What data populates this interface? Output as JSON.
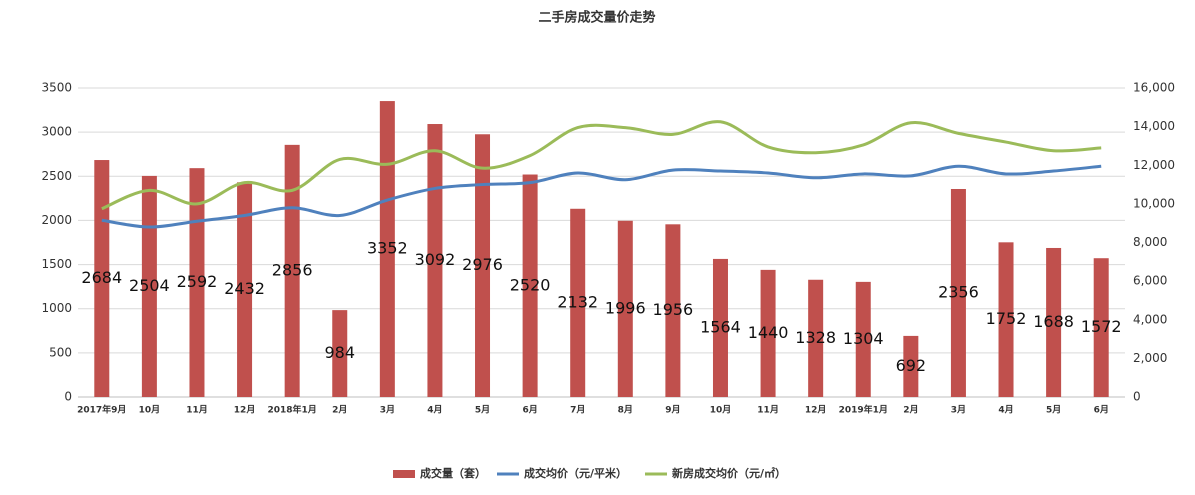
{
  "chart_data": {
    "type": "bar-line",
    "title": "二手房成交量价走势",
    "categories": [
      "2017年9月",
      "10月",
      "11月",
      "12月",
      "2018年1月",
      "2月",
      "3月",
      "4月",
      "5月",
      "6月",
      "7月",
      "8月",
      "9月",
      "10月",
      "11月",
      "12月",
      "2019年1月",
      "2月",
      "3月",
      "4月",
      "5月",
      "6月"
    ],
    "series": [
      {
        "name": "成交量（套）",
        "type": "bar",
        "color": "#c0504d",
        "values": [
          2684,
          2504,
          2592,
          2432,
          2856,
          984,
          3352,
          3092,
          2976,
          2520,
          2132,
          1996,
          1956,
          1564,
          1440,
          1328,
          1304,
          692,
          2356,
          1752,
          1688,
          1572
        ]
      },
      {
        "name": "成交均价（元/平米）",
        "type": "line",
        "axis": "y2",
        "color": "#4f81bd",
        "values": [
          9150,
          8800,
          9100,
          9400,
          9800,
          9400,
          10200,
          10800,
          11000,
          11100,
          11600,
          11250,
          11750,
          11700,
          11600,
          11350,
          11550,
          11450,
          11950,
          11550,
          11700,
          11950
        ]
      },
      {
        "name": "新房成交均价（元/㎡）",
        "type": "line",
        "axis": "y2",
        "color": "#9bbb59",
        "values": [
          9750,
          10700,
          10000,
          11100,
          10700,
          12300,
          12050,
          12750,
          11850,
          12500,
          13950,
          13950,
          13600,
          14250,
          12950,
          12650,
          13050,
          14200,
          13650,
          13200,
          12750,
          12900
        ]
      }
    ],
    "ylim": [
      0,
      3500
    ],
    "yticks": [
      0,
      500,
      1000,
      1500,
      2000,
      2500,
      3000,
      3500
    ],
    "y2lim": [
      0,
      16000
    ],
    "y2ticks": [
      0,
      {
        "value": 2000,
        "label": "2,000"
      },
      {
        "value": 4000,
        "label": "4,000"
      },
      {
        "value": 6000,
        "label": "6,000"
      },
      {
        "value": 8000,
        "label": "8,000"
      },
      {
        "value": 10000,
        "label": "10,000"
      },
      {
        "value": 12000,
        "label": "12,000"
      },
      {
        "value": 14000,
        "label": "14,000"
      },
      {
        "value": 16000,
        "label": "16,000"
      }
    ],
    "grid": true,
    "legend": "bottom"
  }
}
